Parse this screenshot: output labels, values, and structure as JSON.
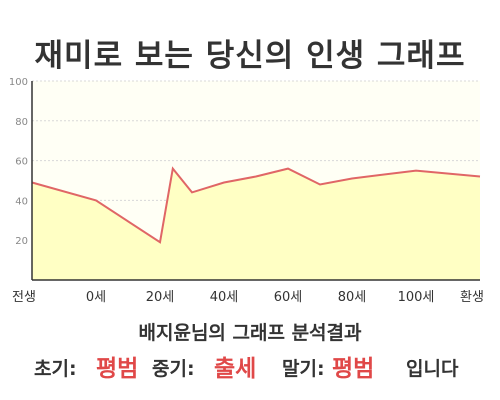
{
  "title": "재미로 보는 당신의 인생 그래프",
  "summary": "배지윤님의 그래프 분석결과",
  "results": {
    "early_label": "초기:",
    "early_value": "평범",
    "mid_label": "중기:",
    "mid_value": "출세",
    "late_label": "말기:",
    "late_value": "평범",
    "suffix": "입니다"
  },
  "colors": {
    "line": "#e06666",
    "fill": "#ffffc4",
    "background_top": "#fffff5",
    "accent": "#e04848"
  },
  "chart_data": {
    "type": "area",
    "title": "",
    "xlabel": "",
    "ylabel": "",
    "categories": [
      "전생",
      "0세",
      "20세",
      "40세",
      "60세",
      "80세",
      "100세",
      "환생"
    ],
    "x": [
      -20,
      0,
      20,
      24,
      30,
      40,
      50,
      60,
      70,
      80,
      100,
      120
    ],
    "values": [
      49,
      40,
      19,
      56,
      44,
      49,
      52,
      56,
      48,
      51,
      55,
      52
    ],
    "ylim": [
      0,
      100
    ],
    "yticks": [
      20,
      40,
      60,
      80,
      100
    ],
    "grid": true,
    "legend": "none"
  }
}
